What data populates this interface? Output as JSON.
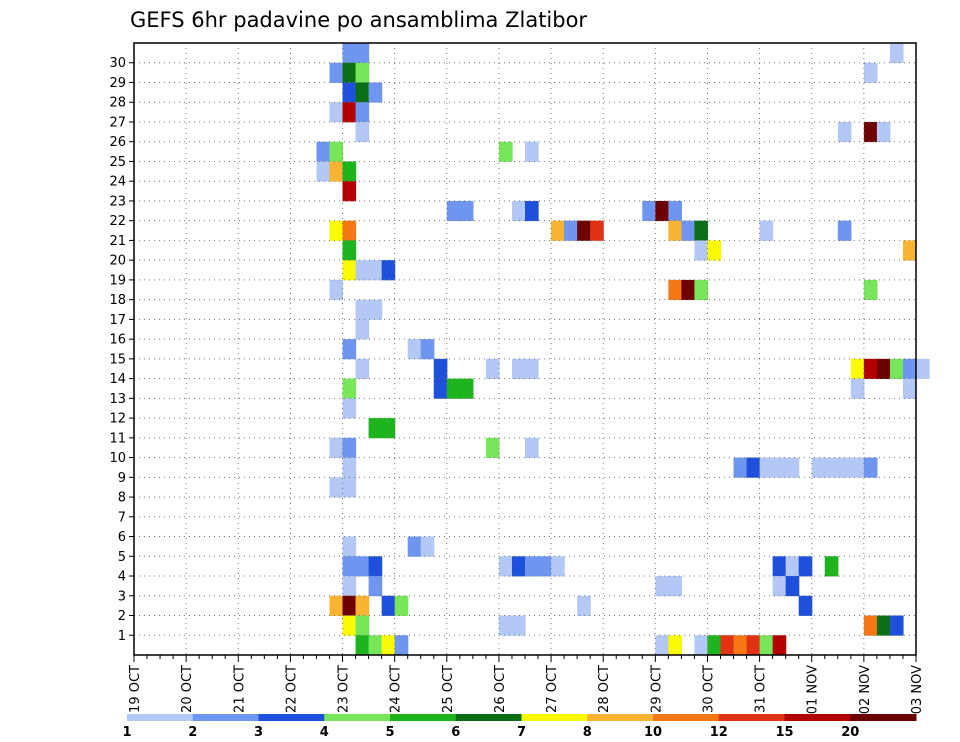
{
  "chart_data": {
    "type": "heatmap",
    "title": "GEFS 6hr padavine po ansamblima Zlatibor",
    "xlabel": "",
    "ylabel": "",
    "x_tick_labels": [
      "19 OCT",
      "20 OCT",
      "21 OCT",
      "22 OCT",
      "23 OCT",
      "24 OCT",
      "25 OCT",
      "26 OCT",
      "27 OCT",
      "28 OCT",
      "29 OCT",
      "30 OCT",
      "31 OCT",
      "01 NOV",
      "02 NOV",
      "03 NOV"
    ],
    "y_tick_labels": [
      "1",
      "2",
      "3",
      "4",
      "5",
      "6",
      "7",
      "8",
      "9",
      "10",
      "11",
      "12",
      "13",
      "14",
      "15",
      "16",
      "17",
      "18",
      "19",
      "20",
      "21",
      "22",
      "23",
      "24",
      "25",
      "26",
      "27",
      "28",
      "29",
      "30"
    ],
    "steps_per_day": 4,
    "grid": true,
    "colorbar": {
      "labels": [
        "1",
        "2",
        "3",
        "4",
        "5",
        "6",
        "7",
        "8",
        "10",
        "12",
        "15",
        "20"
      ],
      "colors": [
        "#b4c8f5",
        "#6e96f0",
        "#1e50dc",
        "#78e65a",
        "#1eb41e",
        "#0a6e14",
        "#fafa00",
        "#fab432",
        "#f57814",
        "#e13214",
        "#b40000",
        "#6e0000"
      ]
    },
    "cells_ensemble_step_class": [
      [
        30,
        16,
        2
      ],
      [
        30,
        17,
        2
      ],
      [
        30,
        58,
        1
      ],
      [
        29,
        15,
        2
      ],
      [
        29,
        16,
        6
      ],
      [
        29,
        17,
        4
      ],
      [
        29,
        56,
        1
      ],
      [
        28,
        16,
        3
      ],
      [
        28,
        17,
        6
      ],
      [
        28,
        18,
        2
      ],
      [
        27,
        15,
        1
      ],
      [
        27,
        16,
        11
      ],
      [
        27,
        17,
        2
      ],
      [
        26,
        17,
        1
      ],
      [
        26,
        54,
        1
      ],
      [
        26,
        56,
        12
      ],
      [
        26,
        57,
        1
      ],
      [
        25,
        14,
        2
      ],
      [
        25,
        15,
        4
      ],
      [
        25,
        28,
        4
      ],
      [
        25,
        30,
        1
      ],
      [
        24,
        14,
        1
      ],
      [
        24,
        15,
        8
      ],
      [
        24,
        16,
        5
      ],
      [
        23,
        16,
        11
      ],
      [
        22,
        24,
        2
      ],
      [
        22,
        25,
        2
      ],
      [
        22,
        29,
        1
      ],
      [
        22,
        30,
        3
      ],
      [
        22,
        39,
        2
      ],
      [
        22,
        40,
        12
      ],
      [
        22,
        41,
        2
      ],
      [
        21,
        15,
        7
      ],
      [
        21,
        16,
        9
      ],
      [
        21,
        32,
        8
      ],
      [
        21,
        33,
        2
      ],
      [
        21,
        34,
        12
      ],
      [
        21,
        35,
        10
      ],
      [
        21,
        41,
        8
      ],
      [
        21,
        42,
        2
      ],
      [
        21,
        43,
        6
      ],
      [
        21,
        48,
        1
      ],
      [
        21,
        54,
        2
      ],
      [
        20,
        16,
        5
      ],
      [
        20,
        43,
        1
      ],
      [
        20,
        44,
        7
      ],
      [
        20,
        59,
        8
      ],
      [
        19,
        16,
        7
      ],
      [
        19,
        17,
        1
      ],
      [
        19,
        18,
        1
      ],
      [
        19,
        19,
        3
      ],
      [
        18,
        15,
        1
      ],
      [
        18,
        41,
        9
      ],
      [
        18,
        42,
        12
      ],
      [
        18,
        43,
        4
      ],
      [
        18,
        56,
        4
      ],
      [
        17,
        17,
        1
      ],
      [
        17,
        18,
        1
      ],
      [
        16,
        17,
        1
      ],
      [
        15,
        16,
        2
      ],
      [
        15,
        21,
        1
      ],
      [
        15,
        22,
        2
      ],
      [
        14,
        17,
        1
      ],
      [
        14,
        23,
        3
      ],
      [
        14,
        27,
        1
      ],
      [
        14,
        29,
        1
      ],
      [
        14,
        30,
        1
      ],
      [
        14,
        55,
        7
      ],
      [
        14,
        56,
        11
      ],
      [
        14,
        57,
        12
      ],
      [
        14,
        58,
        4
      ],
      [
        14,
        59,
        2
      ],
      [
        14,
        60,
        1
      ],
      [
        13,
        16,
        4
      ],
      [
        13,
        23,
        3
      ],
      [
        13,
        24,
        5
      ],
      [
        13,
        25,
        5
      ],
      [
        13,
        55,
        1
      ],
      [
        13,
        59,
        1
      ],
      [
        12,
        16,
        1
      ],
      [
        11,
        18,
        5
      ],
      [
        11,
        19,
        5
      ],
      [
        10,
        15,
        1
      ],
      [
        10,
        16,
        2
      ],
      [
        10,
        27,
        4
      ],
      [
        10,
        30,
        1
      ],
      [
        9,
        16,
        1
      ],
      [
        9,
        46,
        2
      ],
      [
        9,
        47,
        3
      ],
      [
        9,
        48,
        1
      ],
      [
        9,
        49,
        1
      ],
      [
        9,
        50,
        1
      ],
      [
        9,
        52,
        1
      ],
      [
        9,
        53,
        1
      ],
      [
        9,
        54,
        1
      ],
      [
        9,
        55,
        1
      ],
      [
        9,
        56,
        2
      ],
      [
        8,
        15,
        1
      ],
      [
        8,
        16,
        1
      ],
      [
        5,
        16,
        1
      ],
      [
        5,
        21,
        2
      ],
      [
        5,
        22,
        1
      ],
      [
        4,
        16,
        2
      ],
      [
        4,
        17,
        2
      ],
      [
        4,
        18,
        3
      ],
      [
        4,
        28,
        1
      ],
      [
        4,
        29,
        3
      ],
      [
        4,
        30,
        2
      ],
      [
        4,
        31,
        2
      ],
      [
        4,
        32,
        1
      ],
      [
        4,
        49,
        3
      ],
      [
        4,
        50,
        1
      ],
      [
        4,
        51,
        3
      ],
      [
        4,
        53,
        5
      ],
      [
        3,
        16,
        1
      ],
      [
        3,
        18,
        2
      ],
      [
        3,
        40,
        1
      ],
      [
        3,
        41,
        1
      ],
      [
        3,
        49,
        1
      ],
      [
        3,
        50,
        3
      ],
      [
        2,
        15,
        8
      ],
      [
        2,
        16,
        12
      ],
      [
        2,
        17,
        8
      ],
      [
        2,
        19,
        3
      ],
      [
        2,
        20,
        4
      ],
      [
        2,
        34,
        1
      ],
      [
        2,
        51,
        3
      ],
      [
        1,
        16,
        7
      ],
      [
        1,
        17,
        4
      ],
      [
        1,
        28,
        1
      ],
      [
        1,
        29,
        1
      ],
      [
        1,
        56,
        9
      ],
      [
        1,
        57,
        6
      ],
      [
        1,
        58,
        3
      ],
      [
        0,
        17,
        5
      ],
      [
        0,
        18,
        4
      ],
      [
        0,
        19,
        7
      ],
      [
        0,
        20,
        2
      ],
      [
        0,
        40,
        1
      ],
      [
        0,
        41,
        7
      ],
      [
        0,
        43,
        1
      ],
      [
        0,
        44,
        5
      ],
      [
        0,
        45,
        10
      ],
      [
        0,
        46,
        9
      ],
      [
        0,
        47,
        10
      ],
      [
        0,
        48,
        4
      ],
      [
        0,
        49,
        11
      ]
    ]
  }
}
